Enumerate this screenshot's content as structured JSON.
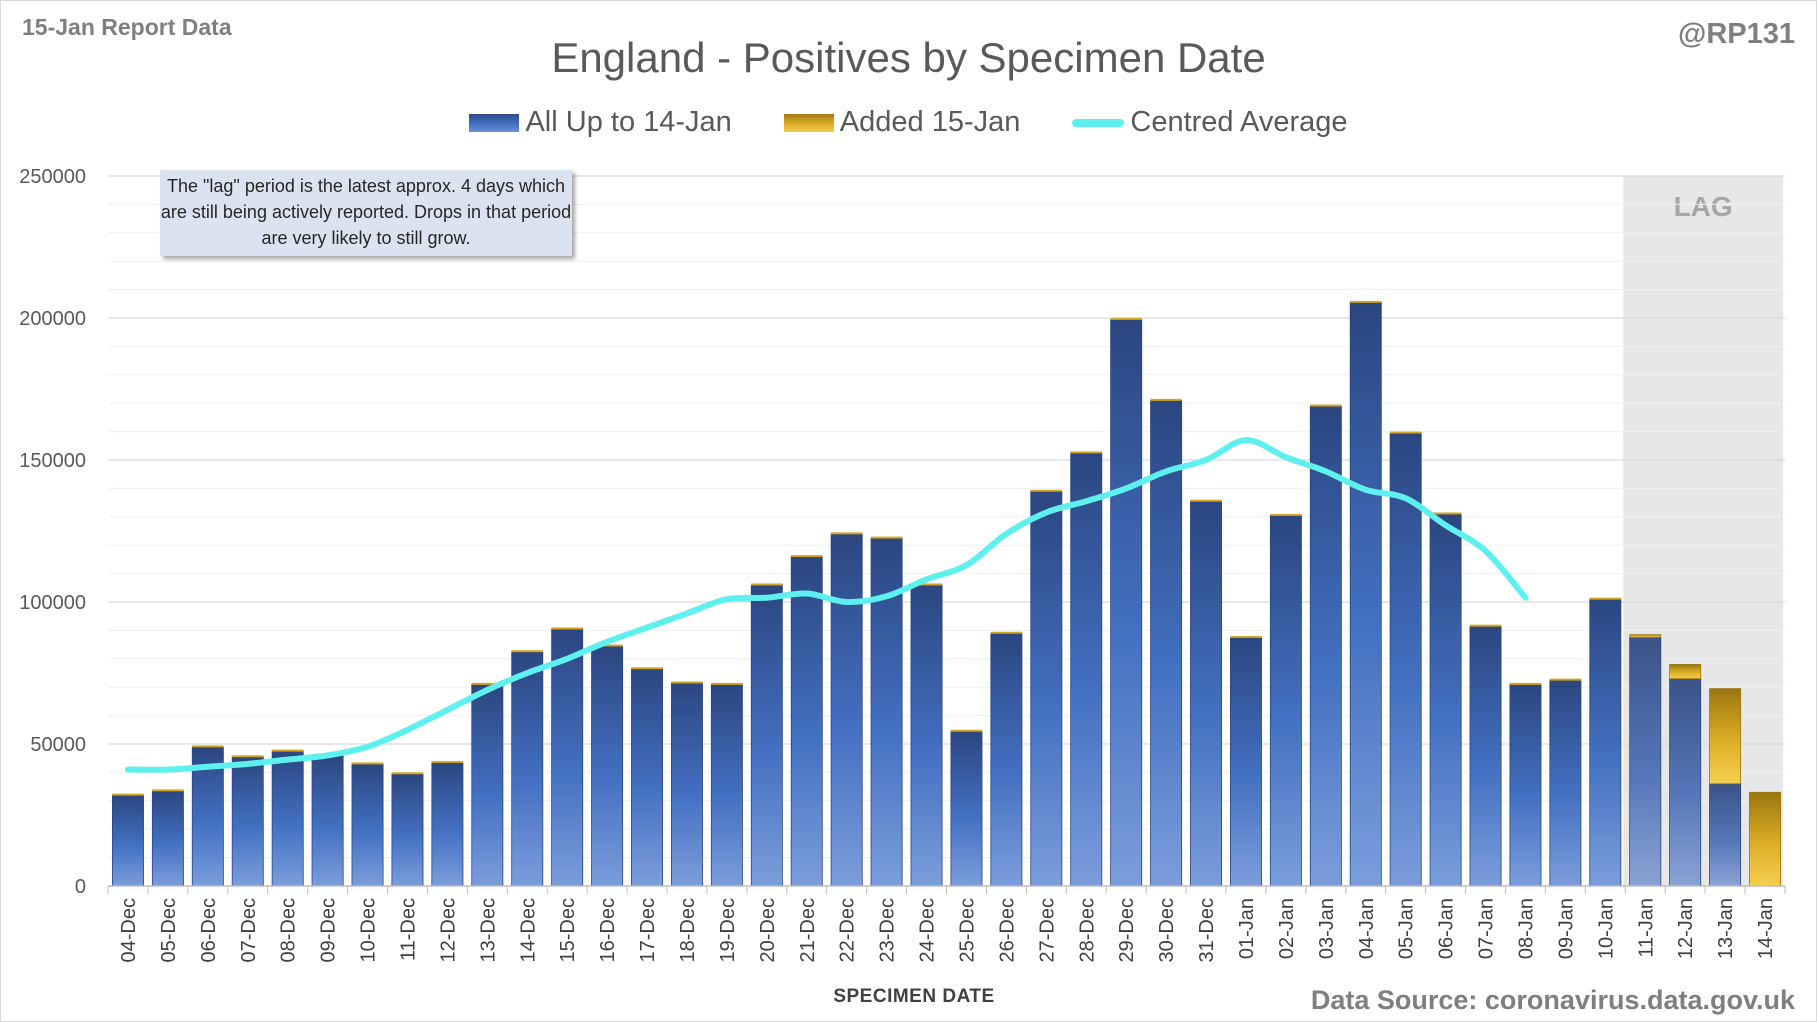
{
  "header": {
    "report_label": "15-Jan Report Data",
    "handle": "@RP131",
    "source": "Data Source: coronavirus.data.gov.uk"
  },
  "colors": {
    "all_series": "#4472c4",
    "added_series": "#e0b22a",
    "average_line": "#5ef0ee",
    "lag_shade": "#e7e7e7",
    "gridline": "#d9d9d9"
  },
  "chart_data": {
    "type": "bar",
    "stacked": true,
    "title": "England - Positives by Specimen Date",
    "xlabel": "SPECIMEN DATE",
    "ylabel": "",
    "ylim": [
      0,
      250000
    ],
    "yticks": [
      0,
      50000,
      100000,
      150000,
      200000,
      250000
    ],
    "grid": true,
    "legend_position": "top-center",
    "categories": [
      "04-Dec",
      "05-Dec",
      "06-Dec",
      "07-Dec",
      "08-Dec",
      "09-Dec",
      "10-Dec",
      "11-Dec",
      "12-Dec",
      "13-Dec",
      "14-Dec",
      "15-Dec",
      "16-Dec",
      "17-Dec",
      "18-Dec",
      "19-Dec",
      "20-Dec",
      "21-Dec",
      "22-Dec",
      "23-Dec",
      "24-Dec",
      "25-Dec",
      "26-Dec",
      "27-Dec",
      "28-Dec",
      "29-Dec",
      "30-Dec",
      "31-Dec",
      "01-Jan",
      "02-Jan",
      "03-Jan",
      "04-Jan",
      "05-Jan",
      "06-Jan",
      "07-Jan",
      "08-Jan",
      "09-Jan",
      "10-Jan",
      "11-Jan",
      "12-Jan",
      "13-Jan",
      "14-Jan"
    ],
    "series": [
      {
        "name": "All Up to 14-Jan",
        "values": [
          32000,
          33500,
          49000,
          45500,
          47500,
          46000,
          43000,
          39500,
          43500,
          71000,
          82500,
          90500,
          84500,
          76500,
          71500,
          71000,
          106000,
          116000,
          124000,
          122500,
          106000,
          54500,
          89000,
          139000,
          152500,
          199500,
          171000,
          135500,
          87500,
          130500,
          169000,
          205500,
          159500,
          131000,
          91500,
          71000,
          72500,
          101000,
          87500,
          73000,
          36000,
          0
        ]
      },
      {
        "name": "Added 15-Jan",
        "values": [
          0,
          0,
          0,
          0,
          0,
          0,
          0,
          0,
          0,
          0,
          0,
          0,
          0,
          0,
          0,
          0,
          0,
          0,
          0,
          0,
          0,
          0,
          0,
          0,
          0,
          0,
          0,
          0,
          0,
          0,
          0,
          0,
          0,
          0,
          0,
          0,
          0,
          0,
          1000,
          5000,
          33500,
          33000
        ]
      },
      {
        "name": "Centred Average",
        "type": "line",
        "values": [
          41000,
          41000,
          42000,
          43000,
          44500,
          46000,
          49000,
          55000,
          62000,
          69000,
          75000,
          80000,
          86000,
          91000,
          96000,
          101000,
          101500,
          103000,
          100000,
          102000,
          108000,
          113000,
          124000,
          131500,
          135500,
          140000,
          146000,
          150000,
          157000,
          151000,
          146000,
          139500,
          136500,
          127000,
          118000,
          101500,
          null,
          null,
          null,
          null,
          null,
          null
        ]
      }
    ],
    "lag_region": {
      "label": "LAG",
      "from": "11-Jan",
      "to": "14-Jan"
    },
    "annotation": "The \"lag\" period is the latest approx. 4 days which are still being actively reported. Drops in that period are very likely to still grow."
  }
}
